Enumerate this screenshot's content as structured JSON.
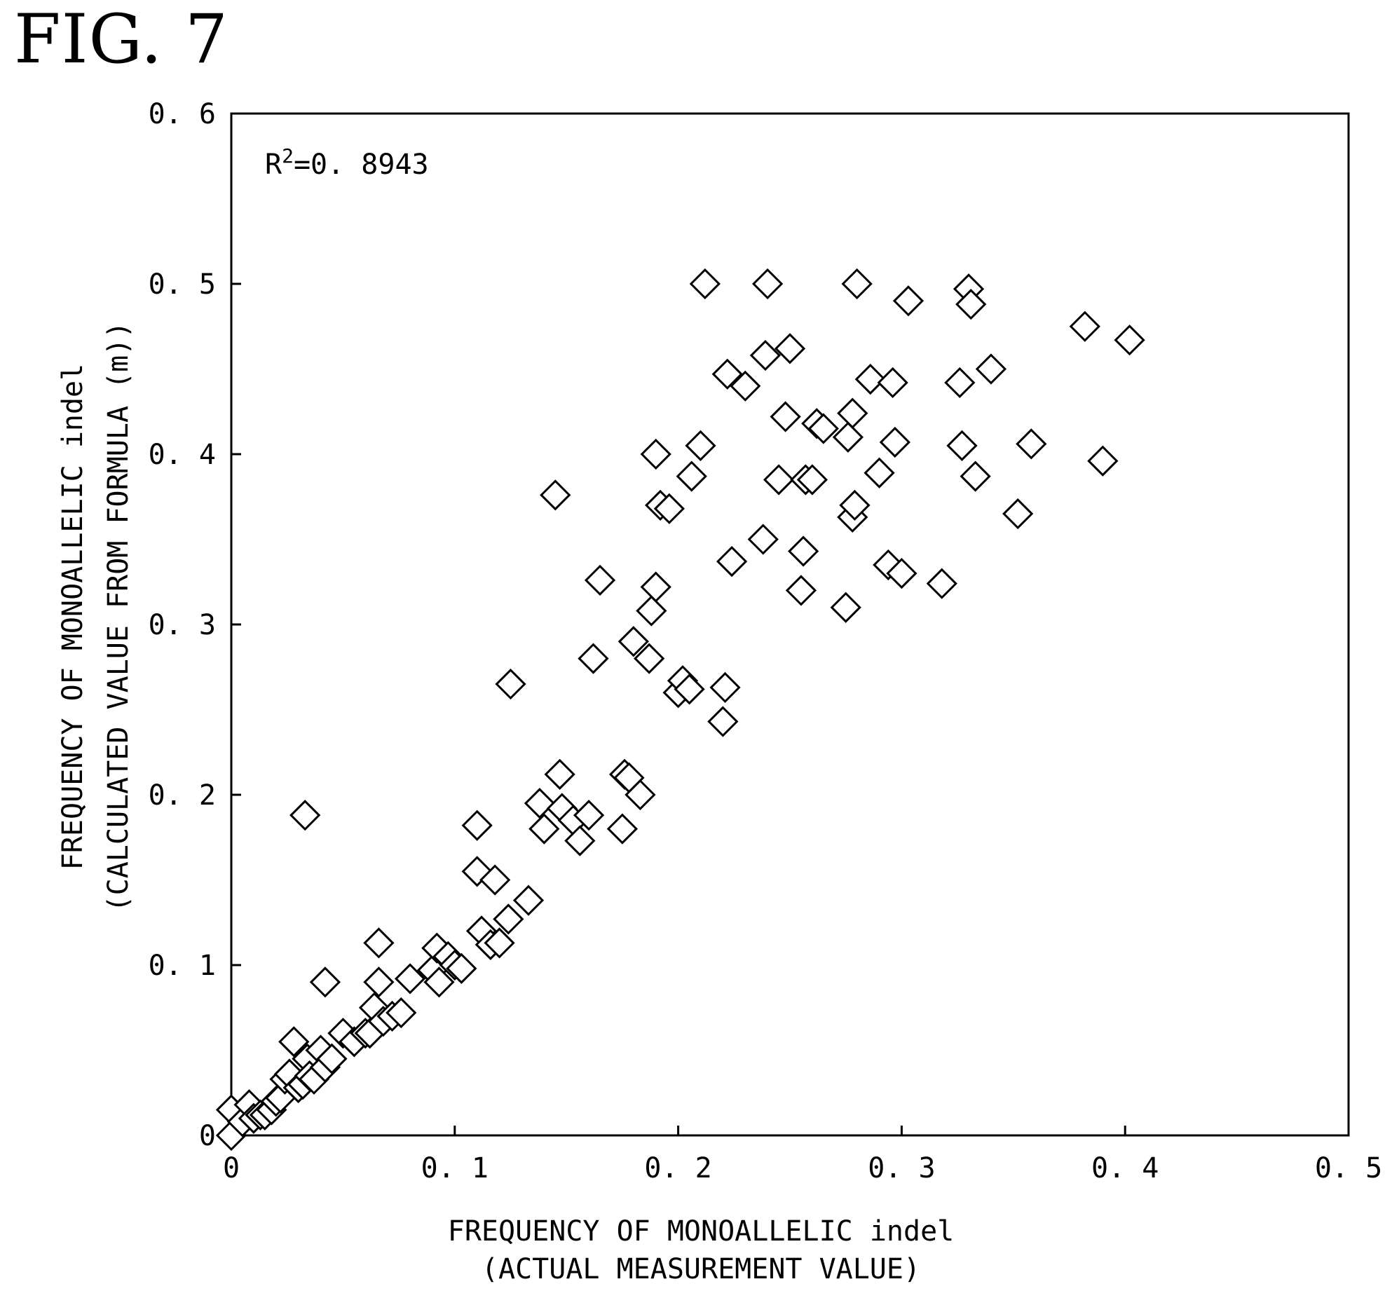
{
  "figure_label": "FIG. 7",
  "chart_data": {
    "type": "scatter",
    "xlabel_line1": "FREQUENCY OF MONOALLELIC indel",
    "xlabel_line2": "(ACTUAL MEASUREMENT VALUE)",
    "ylabel_line1": "FREQUENCY OF MONOALLELIC indel",
    "ylabel_line2": "(CALCULATED VALUE FROM FORMULA (m))",
    "annotation_base": "R",
    "annotation_sup": "2",
    "annotation_value": "=0. 8943",
    "xlim": [
      0,
      0.5
    ],
    "ylim": [
      0,
      0.6
    ],
    "x_ticks": [
      0,
      0.1,
      0.2,
      0.3,
      0.4,
      0.5
    ],
    "x_tick_labels": [
      "0",
      "0. 1",
      "0. 2",
      "0. 3",
      "0. 4",
      "0. 5"
    ],
    "y_ticks": [
      0,
      0.1,
      0.2,
      0.3,
      0.4,
      0.5,
      0.6
    ],
    "y_tick_labels": [
      "0",
      "0. 1",
      "0. 2",
      "0. 3",
      "0. 4",
      "0. 5",
      "0. 6"
    ],
    "grid": false,
    "marker": "open-diamond",
    "points": [
      [
        0.0,
        0.0
      ],
      [
        0.0,
        0.015
      ],
      [
        0.005,
        0.008
      ],
      [
        0.008,
        0.018
      ],
      [
        0.01,
        0.01
      ],
      [
        0.013,
        0.012
      ],
      [
        0.015,
        0.012
      ],
      [
        0.018,
        0.015
      ],
      [
        0.02,
        0.02
      ],
      [
        0.022,
        0.022
      ],
      [
        0.024,
        0.033
      ],
      [
        0.026,
        0.036
      ],
      [
        0.028,
        0.055
      ],
      [
        0.03,
        0.028
      ],
      [
        0.032,
        0.03
      ],
      [
        0.033,
        0.188
      ],
      [
        0.034,
        0.045
      ],
      [
        0.035,
        0.035
      ],
      [
        0.037,
        0.033
      ],
      [
        0.04,
        0.05
      ],
      [
        0.042,
        0.04
      ],
      [
        0.042,
        0.09
      ],
      [
        0.045,
        0.045
      ],
      [
        0.05,
        0.06
      ],
      [
        0.055,
        0.055
      ],
      [
        0.06,
        0.06
      ],
      [
        0.062,
        0.06
      ],
      [
        0.064,
        0.075
      ],
      [
        0.066,
        0.09
      ],
      [
        0.066,
        0.113
      ],
      [
        0.068,
        0.067
      ],
      [
        0.072,
        0.07
      ],
      [
        0.076,
        0.072
      ],
      [
        0.08,
        0.092
      ],
      [
        0.09,
        0.097
      ],
      [
        0.092,
        0.11
      ],
      [
        0.093,
        0.09
      ],
      [
        0.097,
        0.105
      ],
      [
        0.1,
        0.1
      ],
      [
        0.103,
        0.098
      ],
      [
        0.11,
        0.155
      ],
      [
        0.11,
        0.182
      ],
      [
        0.112,
        0.12
      ],
      [
        0.116,
        0.112
      ],
      [
        0.118,
        0.15
      ],
      [
        0.12,
        0.113
      ],
      [
        0.124,
        0.127
      ],
      [
        0.125,
        0.265
      ],
      [
        0.133,
        0.138
      ],
      [
        0.138,
        0.195
      ],
      [
        0.14,
        0.18
      ],
      [
        0.145,
        0.376
      ],
      [
        0.147,
        0.212
      ],
      [
        0.148,
        0.192
      ],
      [
        0.153,
        0.185
      ],
      [
        0.156,
        0.173
      ],
      [
        0.16,
        0.188
      ],
      [
        0.162,
        0.28
      ],
      [
        0.165,
        0.326
      ],
      [
        0.175,
        0.18
      ],
      [
        0.176,
        0.212
      ],
      [
        0.178,
        0.21
      ],
      [
        0.18,
        0.29
      ],
      [
        0.183,
        0.2
      ],
      [
        0.187,
        0.28
      ],
      [
        0.188,
        0.308
      ],
      [
        0.19,
        0.4
      ],
      [
        0.19,
        0.322
      ],
      [
        0.192,
        0.37
      ],
      [
        0.196,
        0.368
      ],
      [
        0.2,
        0.26
      ],
      [
        0.202,
        0.267
      ],
      [
        0.205,
        0.262
      ],
      [
        0.206,
        0.387
      ],
      [
        0.21,
        0.405
      ],
      [
        0.212,
        0.5
      ],
      [
        0.22,
        0.243
      ],
      [
        0.221,
        0.263
      ],
      [
        0.222,
        0.447
      ],
      [
        0.224,
        0.337
      ],
      [
        0.23,
        0.44
      ],
      [
        0.238,
        0.35
      ],
      [
        0.239,
        0.458
      ],
      [
        0.24,
        0.5
      ],
      [
        0.245,
        0.385
      ],
      [
        0.248,
        0.422
      ],
      [
        0.25,
        0.462
      ],
      [
        0.255,
        0.32
      ],
      [
        0.256,
        0.343
      ],
      [
        0.257,
        0.385
      ],
      [
        0.26,
        0.385
      ],
      [
        0.262,
        0.418
      ],
      [
        0.265,
        0.415
      ],
      [
        0.275,
        0.31
      ],
      [
        0.276,
        0.41
      ],
      [
        0.278,
        0.363
      ],
      [
        0.278,
        0.424
      ],
      [
        0.279,
        0.37
      ],
      [
        0.28,
        0.5
      ],
      [
        0.286,
        0.444
      ],
      [
        0.29,
        0.389
      ],
      [
        0.294,
        0.335
      ],
      [
        0.296,
        0.442
      ],
      [
        0.297,
        0.407
      ],
      [
        0.3,
        0.33
      ],
      [
        0.303,
        0.49
      ],
      [
        0.318,
        0.324
      ],
      [
        0.326,
        0.442
      ],
      [
        0.327,
        0.405
      ],
      [
        0.33,
        0.497
      ],
      [
        0.331,
        0.488
      ],
      [
        0.333,
        0.387
      ],
      [
        0.34,
        0.45
      ],
      [
        0.352,
        0.365
      ],
      [
        0.358,
        0.406
      ],
      [
        0.382,
        0.475
      ],
      [
        0.39,
        0.396
      ],
      [
        0.402,
        0.467
      ]
    ]
  }
}
